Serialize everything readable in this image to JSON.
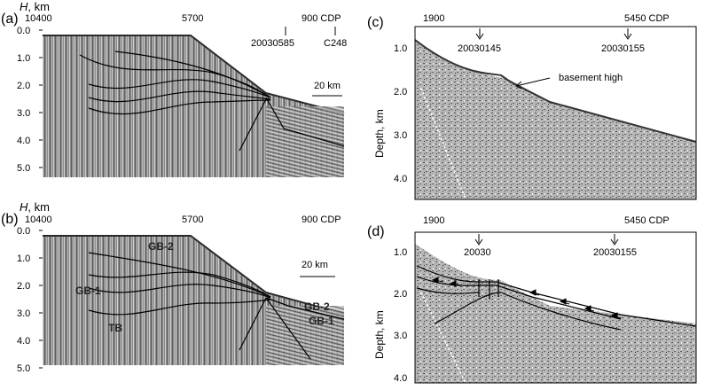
{
  "panels": {
    "a": {
      "label": "(a)",
      "axis_title_italic": "H",
      "axis_title_rest": ", km",
      "x_ticks": [
        "10400",
        "5700",
        "900 CDP"
      ],
      "y_ticks": [
        "0.0",
        "1.0",
        "2.0",
        "3.0",
        "4.0",
        "5.0"
      ],
      "annotations": [
        "20030585",
        "C248"
      ],
      "scale_bar": "20 km"
    },
    "b": {
      "label": "(b)",
      "axis_title_italic": "H",
      "axis_title_rest": ", km",
      "x_ticks": [
        "10400",
        "5700",
        "900 CDP"
      ],
      "y_ticks": [
        "0.0",
        "1.0",
        "2.0",
        "3.0",
        "4.0",
        "5.0"
      ],
      "scale_bar": "20 km",
      "geo_labels": [
        "GB-2",
        "GB-1",
        "TB",
        "GB-2",
        "GB-1"
      ]
    },
    "c": {
      "label": "(c)",
      "x_ticks": [
        "1900",
        "5450 CDP"
      ],
      "y_ticks": [
        "1.0",
        "2.0",
        "3.0",
        "4.0"
      ],
      "y_label": "Depth, km",
      "annotations": [
        "20030145",
        "20030155"
      ],
      "callout": "basement high"
    },
    "d": {
      "label": "(d)",
      "x_ticks": [
        "1900",
        "5450 CDP"
      ],
      "y_ticks": [
        "1.0",
        "2.0",
        "3.0",
        "4.0"
      ],
      "y_label": "Depth, km",
      "annotations": [
        "20030",
        "20030155"
      ]
    }
  }
}
